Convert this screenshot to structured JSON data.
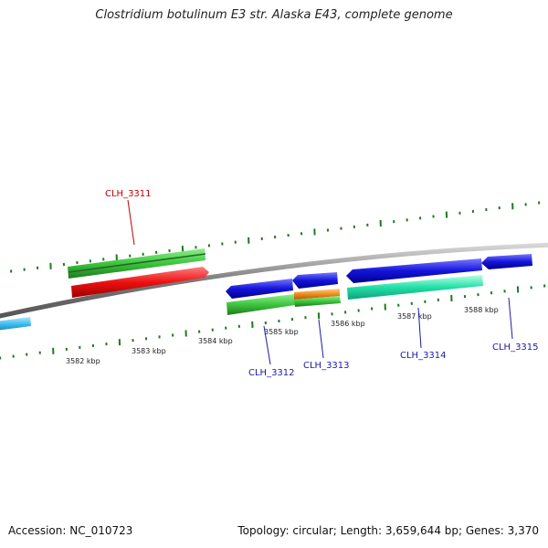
{
  "title": "Clostridium botulinum E3 str. Alaska E43, complete genome",
  "accession_label": "Accession: NC_010723",
  "summary_label": "Topology: circular; Length: 3,659,644 bp; Genes: 3,370",
  "colors": {
    "backbone": "#7a7a7a",
    "tick": "#1e7a1e",
    "forward_label": "#c00000",
    "reverse_label": "#1a1aa8",
    "cyan": "#41bff0",
    "green": "#3ec43e",
    "red": "#ee1111",
    "blue": "#1414dc",
    "orange": "#f08c1e",
    "aqua": "#22e0a8"
  },
  "scale_labels": [
    "3582 kbp",
    "3583 kbp",
    "3584 kbp",
    "3585 kbp",
    "3586 kbp",
    "3587 kbp",
    "3588 kbp"
  ],
  "gene_labels": {
    "clh3311": "CLH_3311",
    "clh3312": "CLH_3312",
    "clh3313": "CLH_3313",
    "clh3314": "CLH_3314",
    "clh3315": "CLH_3315"
  }
}
